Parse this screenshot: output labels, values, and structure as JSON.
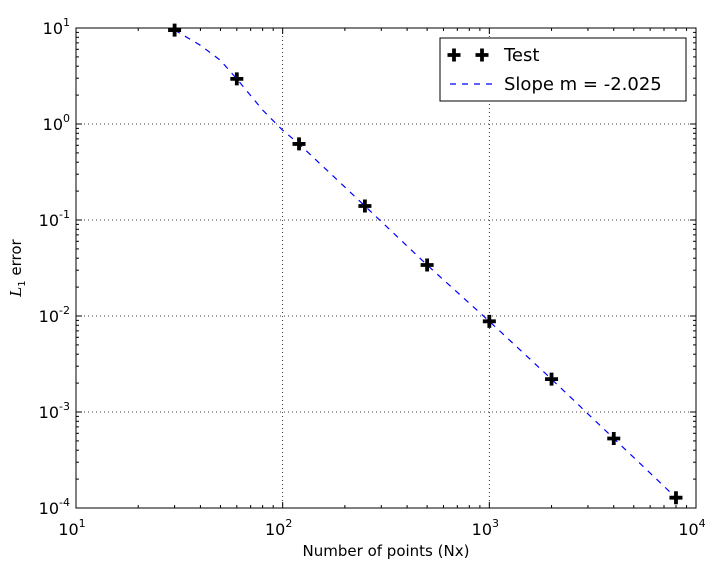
{
  "chart_data": {
    "type": "scatter",
    "xlabel": "Number of points (Nx)",
    "ylabel_var": "L",
    "ylabel_sub": "1",
    "ylabel_rest": " error",
    "x_scale": "log",
    "y_scale": "log",
    "xlim": [
      10,
      10000
    ],
    "ylim": [
      0.0001,
      10
    ],
    "grid": true,
    "legend_position": "top-right",
    "x_ticks": [
      {
        "value": 10,
        "base": "10",
        "exp": "1"
      },
      {
        "value": 100,
        "base": "10",
        "exp": "2"
      },
      {
        "value": 1000,
        "base": "10",
        "exp": "3"
      },
      {
        "value": 10000,
        "base": "10",
        "exp": "4"
      }
    ],
    "y_ticks": [
      {
        "value": 10,
        "base": "10",
        "exp": "1"
      },
      {
        "value": 1,
        "base": "10",
        "exp": "0"
      },
      {
        "value": 0.1,
        "base": "10",
        "exp": "-1"
      },
      {
        "value": 0.01,
        "base": "10",
        "exp": "-2"
      },
      {
        "value": 0.001,
        "base": "10",
        "exp": "-3"
      },
      {
        "value": 0.0001,
        "base": "10",
        "exp": "-4"
      }
    ],
    "series": [
      {
        "name": "Test",
        "marker": "plus-thick",
        "color": "#000000",
        "x": [
          30,
          60,
          120,
          250,
          500,
          1000,
          2000,
          4000,
          8000
        ],
        "y": [
          9.5,
          2.95,
          0.62,
          0.14,
          0.034,
          0.0088,
          0.0022,
          0.00053,
          0.000128
        ]
      },
      {
        "name": "Slope m = -2.025",
        "style": "dashed",
        "color": "#0000ff",
        "x": [
          30,
          40,
          50,
          60,
          80,
          100,
          120,
          250,
          500,
          1000,
          2000,
          4000,
          8000
        ],
        "y": [
          9.5,
          6.6,
          4.6,
          2.95,
          1.4,
          0.86,
          0.62,
          0.14,
          0.034,
          0.0088,
          0.0022,
          0.00053,
          0.000128
        ]
      }
    ]
  }
}
